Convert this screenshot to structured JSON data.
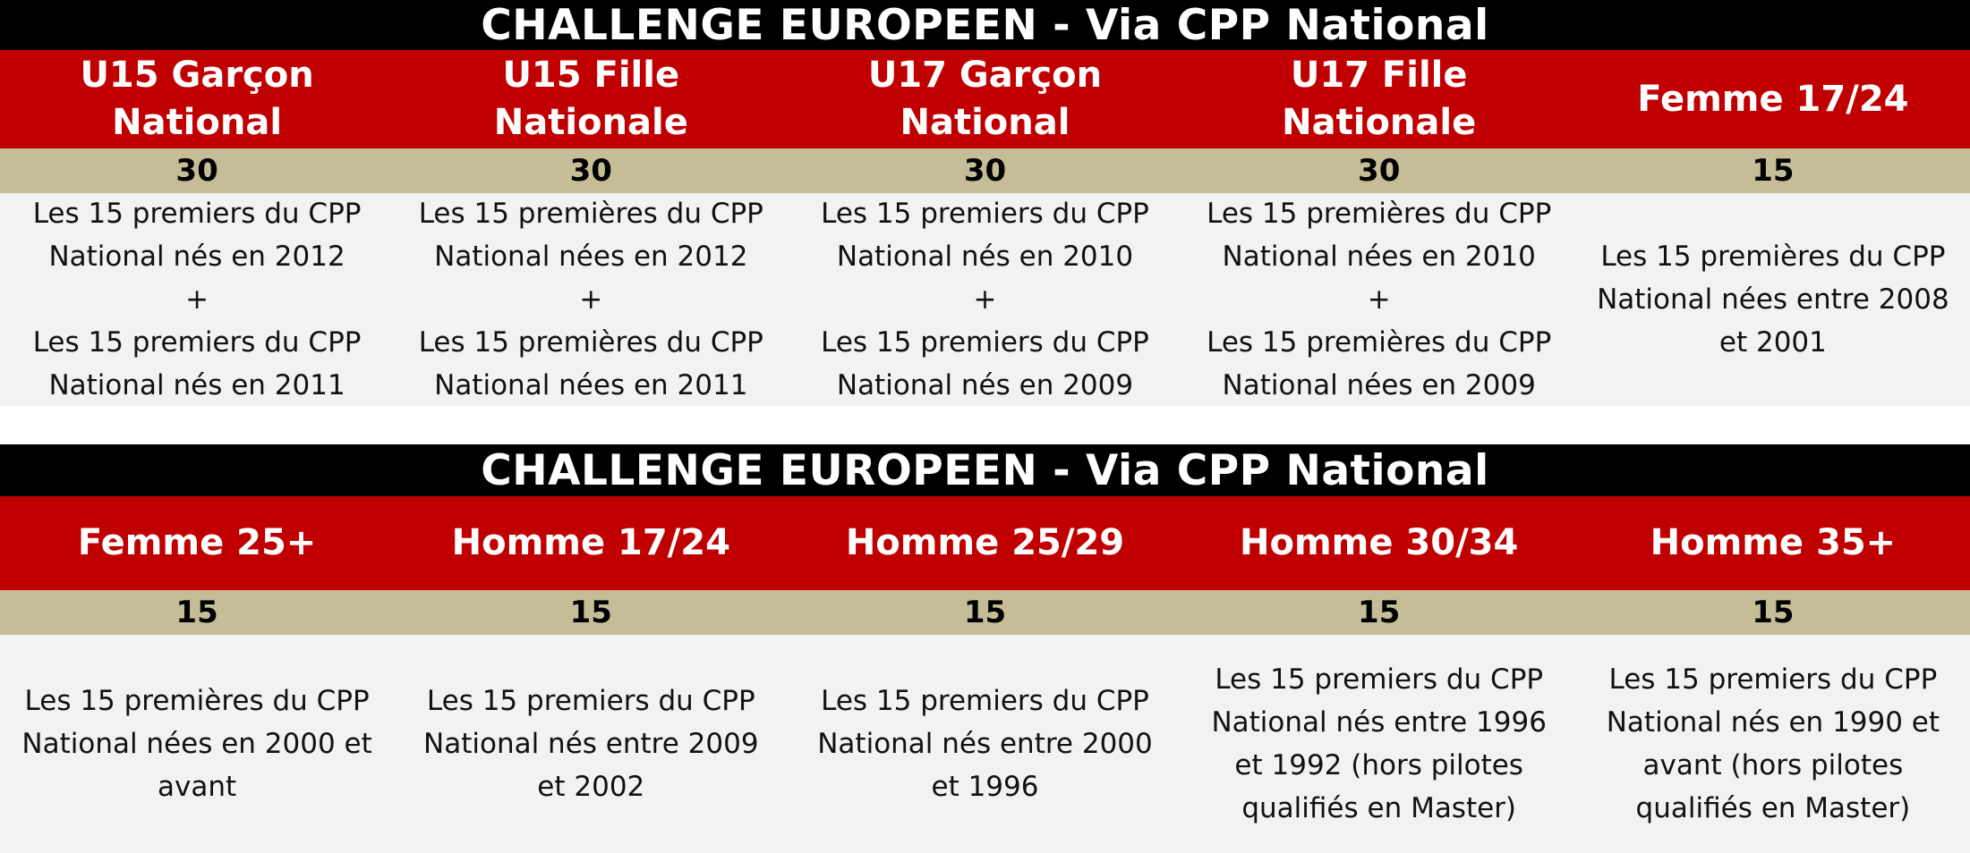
{
  "colors": {
    "title_bg": "#000000",
    "header_bg": "#c00000",
    "count_bg": "#c4bd97",
    "desc_bg": "#f2f2f2"
  },
  "tables": [
    {
      "title": "CHALLENGE EUROPEEN - Via CPP National",
      "columns": [
        {
          "header": "U15 Garçon\nNational",
          "count": "30",
          "description": "Les 15 premiers du CPP\nNational nés en 2012\n+\nLes 15 premiers du CPP\nNational nés en 2011"
        },
        {
          "header": "U15 Fille\nNationale",
          "count": "30",
          "description": "Les 15 premières du CPP\nNational nées en 2012\n+\nLes 15 premières du CPP\nNational nées en 2011"
        },
        {
          "header": "U17 Garçon\nNational",
          "count": "30",
          "description": "Les 15 premiers du CPP\nNational nés en 2010\n+\nLes 15 premiers du CPP\nNational nés en 2009"
        },
        {
          "header": "U17 Fille\nNationale",
          "count": "30",
          "description": "Les 15 premières du CPP\nNational nées en 2010\n+\nLes 15 premières du CPP\nNational nées en 2009"
        },
        {
          "header": "Femme 17/24",
          "count": "15",
          "description": "Les 15 premières du CPP\nNational nées entre 2008\net 2001"
        }
      ]
    },
    {
      "title": "CHALLENGE EUROPEEN - Via CPP National",
      "columns": [
        {
          "header": "Femme 25+",
          "count": "15",
          "description": "Les 15 premières du CPP\nNational nées en 2000 et\navant"
        },
        {
          "header": "Homme 17/24",
          "count": "15",
          "description": "Les 15 premiers du CPP\nNational nés entre 2009\net 2002"
        },
        {
          "header": "Homme 25/29",
          "count": "15",
          "description": "Les 15 premiers du CPP\nNational nés entre 2000\net 1996"
        },
        {
          "header": "Homme 30/34",
          "count": "15",
          "description": "Les 15 premiers du CPP\nNational nés entre 1996\net 1992 (hors pilotes\nqualifiés en Master)"
        },
        {
          "header": "Homme 35+",
          "count": "15",
          "description": "Les 15 premiers du CPP\nNational nés en 1990 et\navant (hors pilotes\nqualifiés en Master)"
        }
      ]
    }
  ]
}
